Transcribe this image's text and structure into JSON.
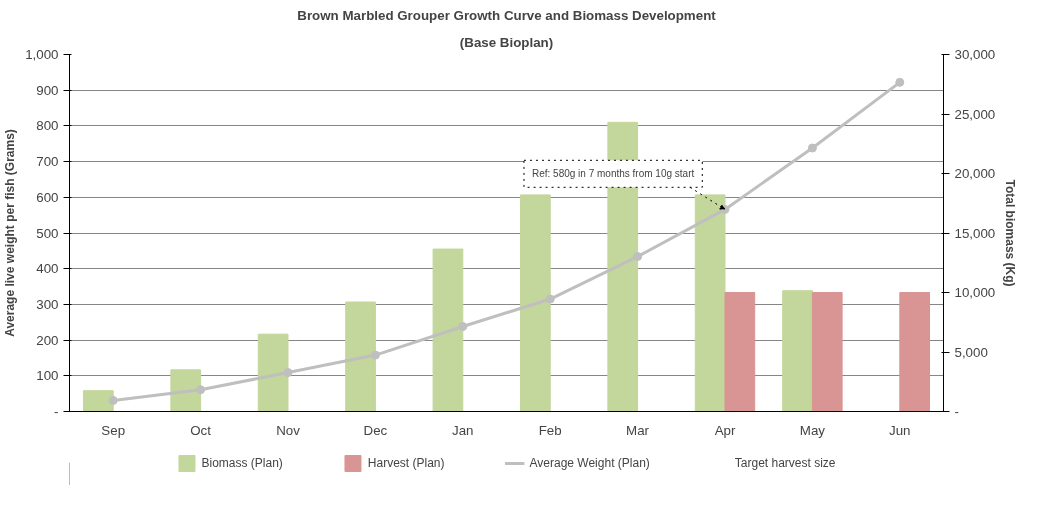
{
  "chart_data": {
    "type": "bar",
    "title": "Brown Marbled Grouper Growth Curve and Biomass Development",
    "subtitle": "(Base Bioplan)",
    "ylabel": "Average live weight per fish (Grams)",
    "y2label": "Total biomass (Kg)",
    "categories": [
      "Sep",
      "Oct",
      "Nov",
      "Dec",
      "Jan",
      "Feb",
      "Mar",
      "Apr",
      "May",
      "Jun"
    ],
    "series": [
      {
        "name": "Biomass (Plan)",
        "axis": "y2",
        "color": "#c3d69b",
        "values": [
          1750,
          3500,
          6500,
          9200,
          13650,
          18200,
          24300,
          18200,
          10150,
          0
        ]
      },
      {
        "name": "Harvest (Plan)",
        "axis": "y2",
        "color": "#d99594",
        "values": [
          null,
          null,
          null,
          null,
          null,
          null,
          null,
          10000,
          10000,
          10000
        ]
      },
      {
        "name": "Average Weight (Plan)",
        "type": "line",
        "axis": "y",
        "color": "#bfbfbf",
        "marker": "circle",
        "values": [
          31,
          61,
          109,
          158,
          238,
          315,
          434,
          566,
          738,
          922
        ]
      }
    ],
    "ylim": [
      0,
      1000
    ],
    "yticks": [
      {
        "value": 0,
        "label": "-"
      },
      100,
      200,
      300,
      400,
      500,
      600,
      700,
      800,
      900,
      {
        "value": 1000,
        "label": "1,000"
      }
    ],
    "y2lim": [
      0,
      30000
    ],
    "y2ticks": [
      {
        "value": 0,
        "label": "-"
      },
      {
        "value": 5000,
        "label": "5,000"
      },
      {
        "value": 10000,
        "label": "10,000"
      },
      {
        "value": 15000,
        "label": "15,000"
      },
      {
        "value": 20000,
        "label": "20,000"
      },
      {
        "value": 25000,
        "label": "25,000"
      },
      {
        "value": 30000,
        "label": "30,000"
      }
    ],
    "annotations": [
      {
        "text": "Ref: 580g in 7 months from 10g start",
        "x": "Apr",
        "y": 566
      },
      "Target harvest size"
    ],
    "grid": "y",
    "legend": "bottom"
  }
}
